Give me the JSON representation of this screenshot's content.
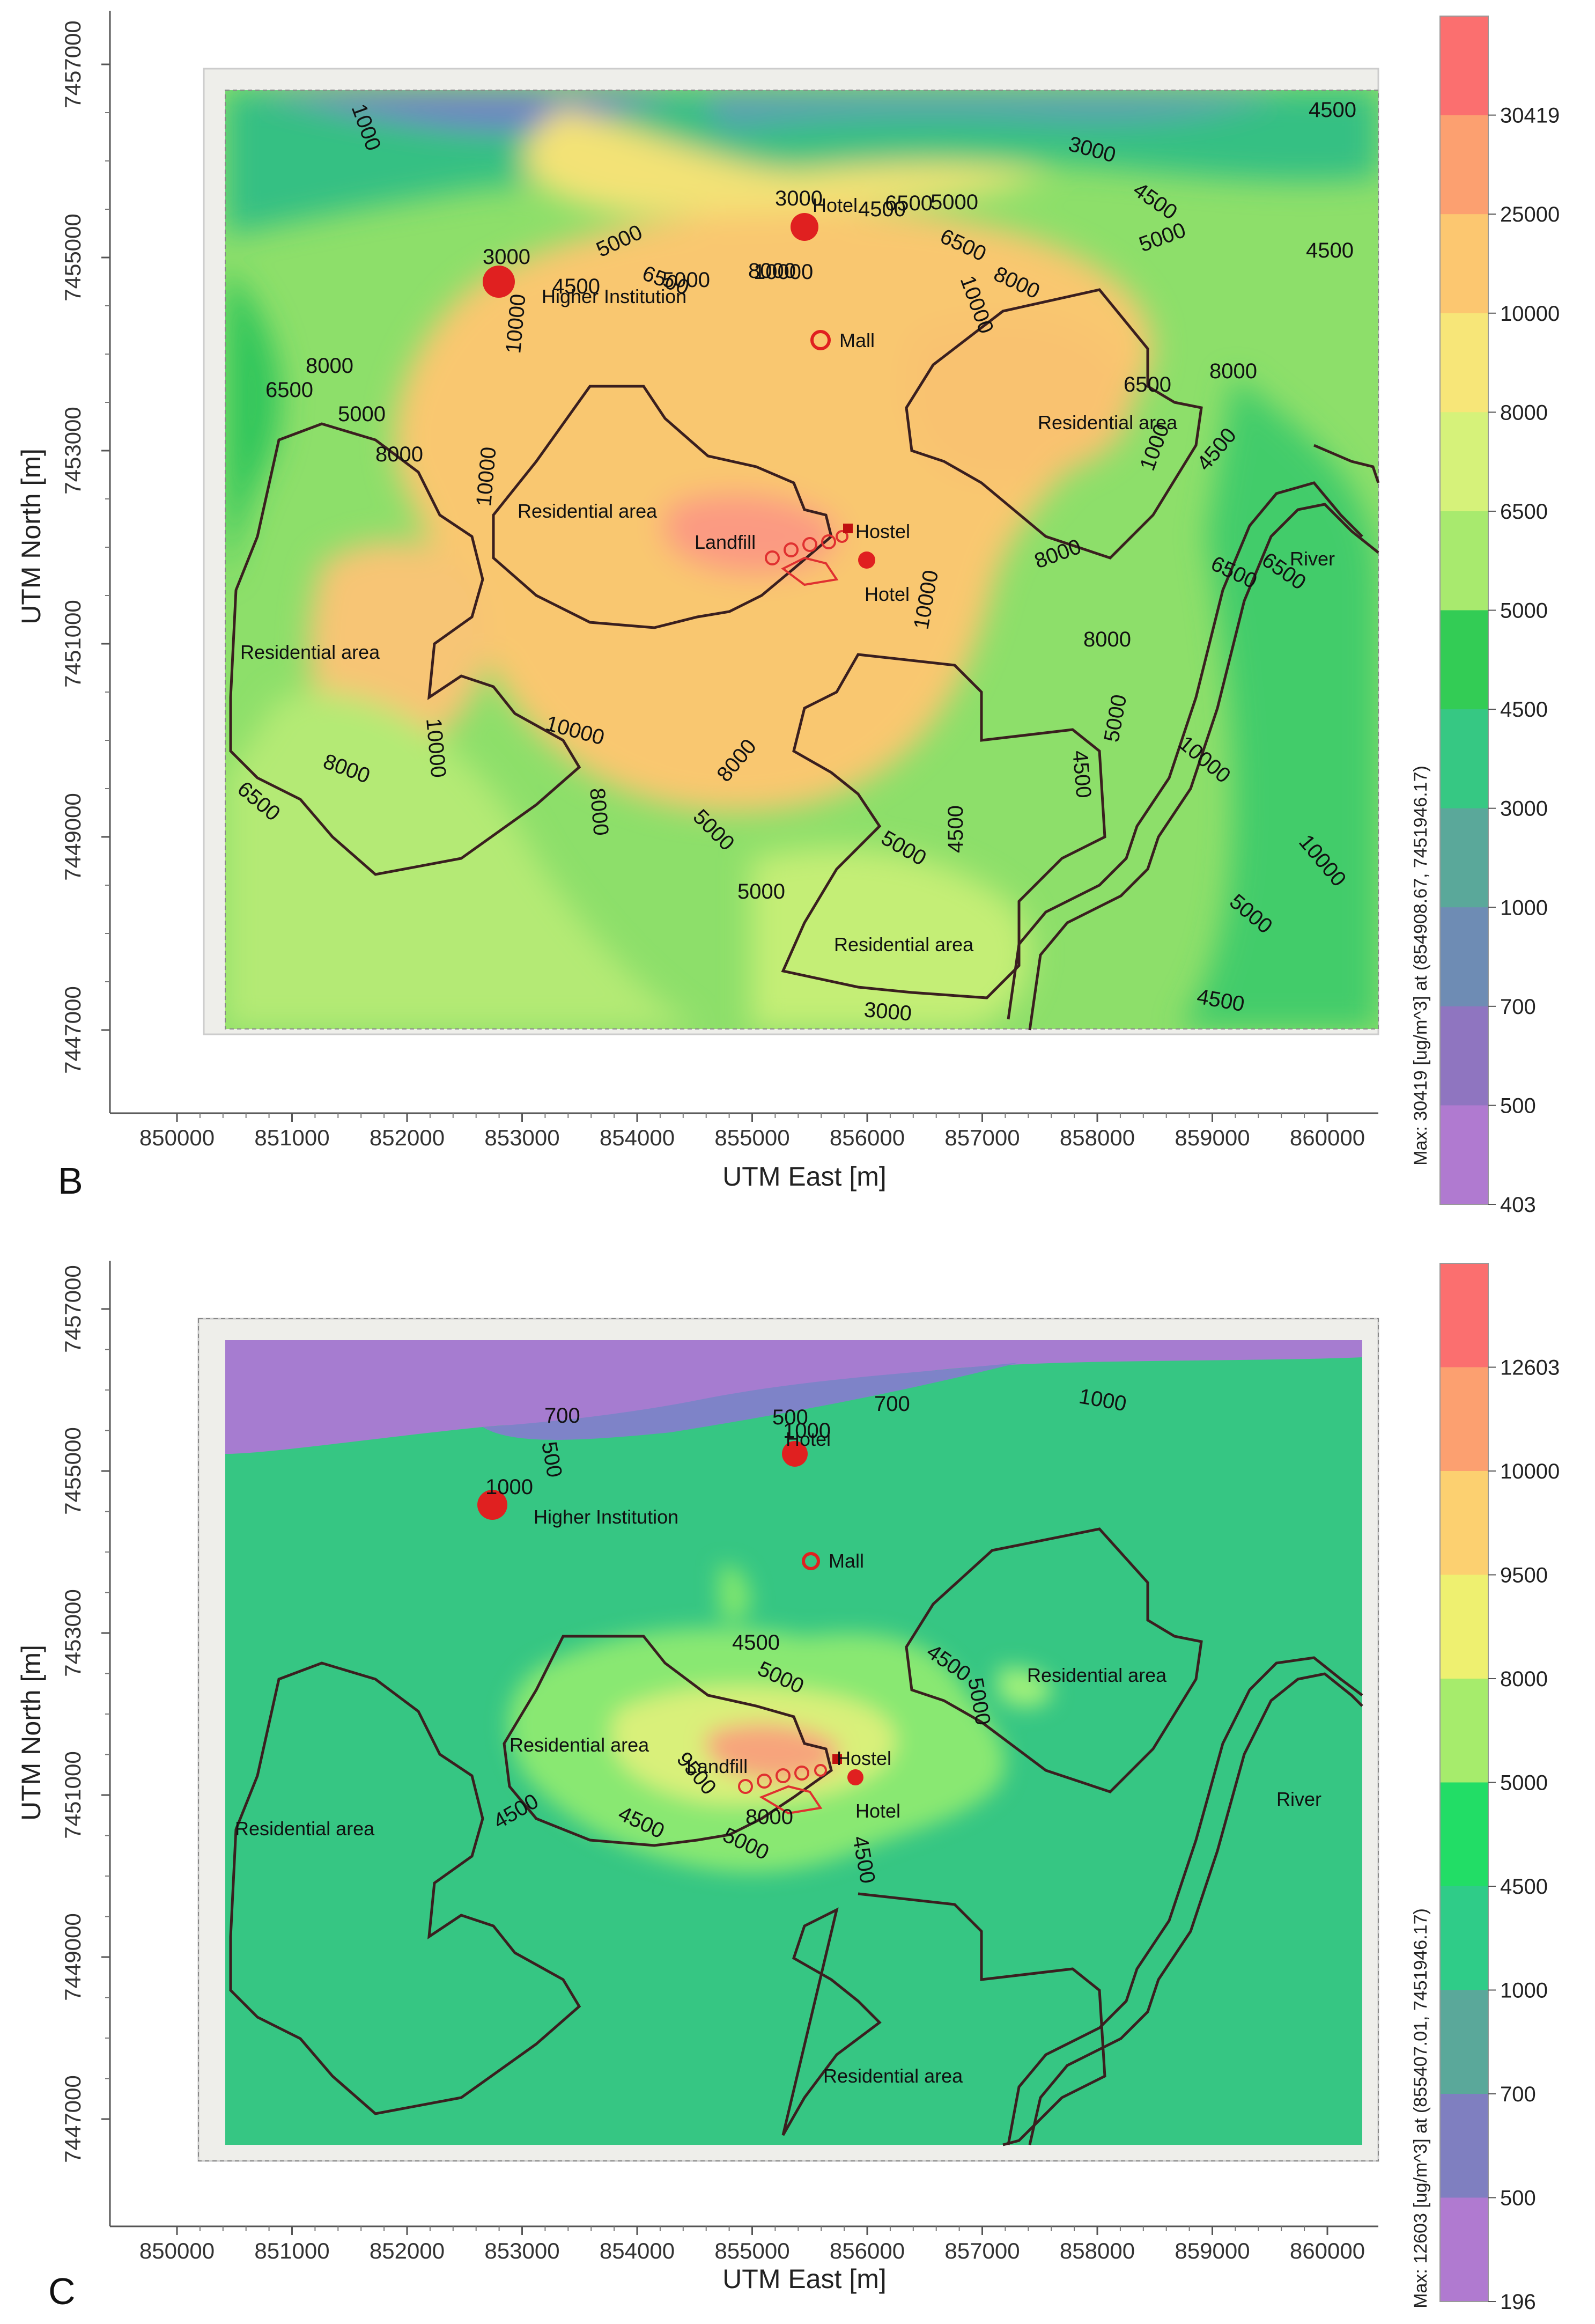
{
  "panels": [
    {
      "id": "B",
      "letter": "B",
      "x_title": "UTM East [m]",
      "y_title": "UTM North [m]",
      "x_ticks": [
        "850000",
        "851000",
        "852000",
        "853000",
        "854000",
        "855000",
        "856000",
        "857000",
        "858000",
        "859000",
        "860000"
      ],
      "y_ticks": [
        "7457000",
        "7455000",
        "7453000",
        "7451000",
        "7449000",
        "7447000"
      ],
      "colorbar": {
        "labels": [
          "30419",
          "25000",
          "10000",
          "8000",
          "6500",
          "5000",
          "4500",
          "3000",
          "1000",
          "700",
          "500",
          "403"
        ],
        "colors": [
          "#fb6f6f",
          "#fca070",
          "#fcc770",
          "#f7e678",
          "#d6f27a",
          "#a8ea6e",
          "#33cc55",
          "#36c883",
          "#5aa89a",
          "#6e8cb4",
          "#8f75c0",
          "#b07ad0"
        ],
        "caption": "Max: 30419 [ug/m^3] at (854908.67, 7451946.17)"
      },
      "places": {
        "hotel_top": "Hotel",
        "higher_institution": "Higher Institution",
        "mall": "Mall",
        "residential_center": "Residential area",
        "residential_left": "Residential area",
        "residential_right": "Residential area",
        "residential_bottom": "Residential area",
        "landfill": "Landfill",
        "hostel": "Hostel",
        "hotel_center": "Hotel",
        "river": "River"
      },
      "contours": {
        "c1": "1000",
        "c2": "3000",
        "c3": "3000",
        "c4": "4500",
        "c5": "5000",
        "c6": "5000",
        "c7": "6500",
        "c8": "10000",
        "c9": "8000",
        "c10": "6500",
        "c11": "5000",
        "c12": "4500",
        "c13": "10000",
        "c14": "4500",
        "c15": "3000",
        "c16": "4500",
        "c17": "5000",
        "c18": "6500",
        "c19": "8000",
        "c20": "10000",
        "c21": "4500",
        "c22": "8000",
        "c23": "6500",
        "c24": "1000",
        "c25": "4500",
        "c26": "8000",
        "c27": "5000",
        "c28": "6500",
        "c29": "8000",
        "c30": "10000",
        "c31": "10000",
        "c32": "8000",
        "c33": "10000",
        "c34": "8000",
        "c35": "6500",
        "c36": "6500",
        "c37": "8000",
        "c38": "8000",
        "c39": "6500",
        "c40": "10000",
        "c41": "8000",
        "c42": "5000",
        "c43": "5000",
        "c44": "5000",
        "c45": "4500",
        "c46": "4500",
        "c47": "5000",
        "c48": "10000",
        "c49": "10000",
        "c50": "5000",
        "c51": "4500",
        "c52": "3000"
      }
    },
    {
      "id": "C",
      "letter": "C",
      "x_title": "UTM East [m]",
      "y_title": "UTM North [m]",
      "x_ticks": [
        "850000",
        "851000",
        "852000",
        "853000",
        "854000",
        "855000",
        "856000",
        "857000",
        "858000",
        "859000",
        "860000"
      ],
      "y_ticks": [
        "7457000",
        "7455000",
        "7453000",
        "7451000",
        "7449000",
        "7447000"
      ],
      "colorbar": {
        "labels": [
          "12603",
          "10000",
          "9500",
          "8000",
          "5000",
          "4500",
          "1000",
          "700",
          "500",
          "196"
        ],
        "colors": [
          "#fb6f6f",
          "#fca070",
          "#fcd070",
          "#eef070",
          "#a6ec6c",
          "#22dd66",
          "#2fcc88",
          "#5aa89a",
          "#7f7fc0",
          "#b07ad0"
        ],
        "caption": "Max: 12603 [ug/m^3] at (855407.01, 7451946.17)"
      },
      "places": {
        "hotel_top": "Hotel",
        "higher_institution": "Higher Institution",
        "mall": "Mall",
        "residential_center": "Residential area",
        "residential_left": "Residential area",
        "residential_right": "Residential area",
        "residential_bottom": "Residential area",
        "landfill": "Landfill",
        "hostel": "Hostel",
        "hotel_center": "Hotel",
        "river": "River"
      },
      "contours": {
        "c1": "700",
        "c2": "500",
        "c3": "500",
        "c4": "1000",
        "c5": "700",
        "c6": "1000",
        "c7": "1000",
        "c8": "4500",
        "c9": "5000",
        "c10": "4500",
        "c11": "5000",
        "c12": "9500",
        "c13": "8000",
        "c14": "4500",
        "c15": "4500",
        "c16": "5000",
        "c17": "4500"
      }
    }
  ]
}
